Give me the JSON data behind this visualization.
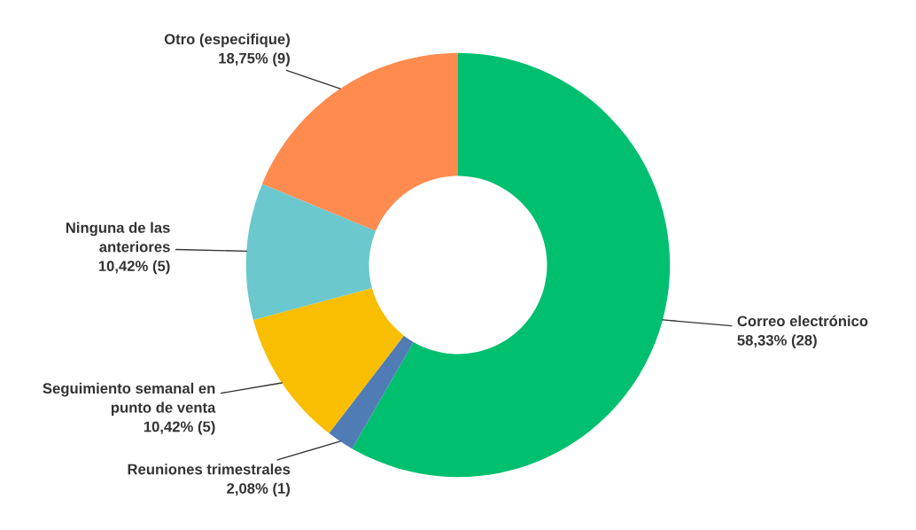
{
  "chart_data": {
    "type": "donut",
    "categories": [
      "Correo electrónico",
      "Reuniones trimestrales",
      "Seguimiento semanal en punto de venta",
      "Ninguna de las anteriores",
      "Otro (especifique)"
    ],
    "values": [
      58.33,
      2.08,
      10.42,
      10.42,
      18.75
    ],
    "value_labels": [
      "58,33% (28)",
      "2,08% (1)",
      "10,42% (5)",
      "10,42% (5)",
      "18,75% (9)"
    ],
    "colors": [
      "#00bf6f",
      "#507cb6",
      "#f9be00",
      "#6bc8cd",
      "#ff8b4f"
    ]
  }
}
